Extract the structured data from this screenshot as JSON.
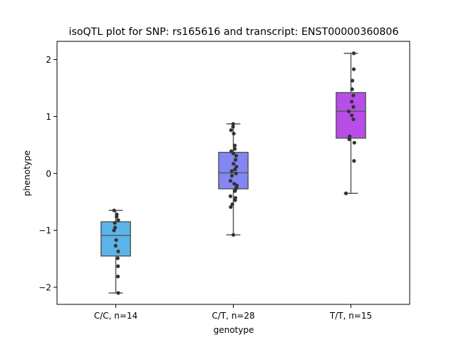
{
  "chart_data": {
    "type": "box",
    "title": "isoQTL plot for SNP: rs165616 and transcript: ENST00000360806",
    "xlabel": "genotype",
    "ylabel": "phenotype",
    "ylim": [
      -2.3,
      2.32
    ],
    "yticks": [
      -2,
      -1,
      0,
      1,
      2
    ],
    "ytick_labels": [
      "−2",
      "−1",
      "0",
      "1",
      "2"
    ],
    "grid": false,
    "categories": [
      "C/C, n=14",
      "C/T, n=28",
      "T/T, n=15"
    ],
    "boxes": [
      {
        "category": "C/C, n=14",
        "color": "#5ab4ea",
        "whisker_low": -2.1,
        "q1": -1.45,
        "median": -1.09,
        "q3": -0.85,
        "whisker_high": -0.65,
        "points": [
          {
            "x": -0.2,
            "y": -0.65
          },
          {
            "x": 0.12,
            "y": -0.72
          },
          {
            "x": 0.1,
            "y": -0.76
          },
          {
            "x": 0.3,
            "y": -0.82
          },
          {
            "x": -0.12,
            "y": -0.87
          },
          {
            "x": -0.08,
            "y": -0.95
          },
          {
            "x": -0.22,
            "y": -1.0
          },
          {
            "x": 0.05,
            "y": -1.17
          },
          {
            "x": -0.02,
            "y": -1.27
          },
          {
            "x": 0.3,
            "y": -1.37
          },
          {
            "x": 0.24,
            "y": -1.49
          },
          {
            "x": 0.27,
            "y": -1.63
          },
          {
            "x": 0.26,
            "y": -1.81
          },
          {
            "x": 0.3,
            "y": -2.1
          }
        ]
      },
      {
        "category": "C/T, n=28",
        "color": "#8486f2",
        "whisker_low": -1.08,
        "q1": -0.27,
        "median": 0.01,
        "q3": 0.37,
        "whisker_high": 0.87,
        "points": [
          {
            "x": -0.02,
            "y": 0.87
          },
          {
            "x": -0.04,
            "y": 0.82
          },
          {
            "x": -0.28,
            "y": 0.76
          },
          {
            "x": 0.05,
            "y": 0.7
          },
          {
            "x": 0.18,
            "y": 0.49
          },
          {
            "x": 0.18,
            "y": 0.43
          },
          {
            "x": -0.25,
            "y": 0.39
          },
          {
            "x": 0.0,
            "y": 0.35
          },
          {
            "x": 0.35,
            "y": 0.31
          },
          {
            "x": 0.27,
            "y": 0.24
          },
          {
            "x": 0.02,
            "y": 0.17
          },
          {
            "x": 0.38,
            "y": 0.12
          },
          {
            "x": 0.2,
            "y": 0.07
          },
          {
            "x": -0.2,
            "y": 0.04
          },
          {
            "x": 0.32,
            "y": 0.0
          },
          {
            "x": -0.18,
            "y": -0.04
          },
          {
            "x": -0.35,
            "y": -0.13
          },
          {
            "x": 0.1,
            "y": -0.18
          },
          {
            "x": 0.42,
            "y": -0.21
          },
          {
            "x": 0.38,
            "y": -0.25
          },
          {
            "x": 0.2,
            "y": -0.31
          },
          {
            "x": 0.3,
            "y": -0.27
          },
          {
            "x": -0.35,
            "y": -0.4
          },
          {
            "x": 0.22,
            "y": -0.47
          },
          {
            "x": 0.25,
            "y": -0.43
          },
          {
            "x": -0.12,
            "y": -0.54
          },
          {
            "x": -0.32,
            "y": -0.59
          },
          {
            "x": 0.0,
            "y": -1.08
          }
        ]
      },
      {
        "category": "T/T, n=15",
        "color": "#b84de8",
        "whisker_low": -0.35,
        "q1": 0.62,
        "median": 1.09,
        "q3": 1.42,
        "whisker_high": 2.11,
        "points": [
          {
            "x": 0.35,
            "y": 2.11
          },
          {
            "x": 0.35,
            "y": 1.83
          },
          {
            "x": 0.18,
            "y": 1.63
          },
          {
            "x": 0.15,
            "y": 1.48
          },
          {
            "x": 0.3,
            "y": 1.37
          },
          {
            "x": 0.1,
            "y": 1.26
          },
          {
            "x": 0.3,
            "y": 1.17
          },
          {
            "x": -0.25,
            "y": 1.09
          },
          {
            "x": 0.1,
            "y": 1.02
          },
          {
            "x": 0.3,
            "y": 0.95
          },
          {
            "x": -0.15,
            "y": 0.65
          },
          {
            "x": -0.2,
            "y": 0.6
          },
          {
            "x": 0.42,
            "y": 0.54
          },
          {
            "x": 0.38,
            "y": 0.22
          },
          {
            "x": -0.6,
            "y": -0.35
          }
        ]
      }
    ]
  }
}
